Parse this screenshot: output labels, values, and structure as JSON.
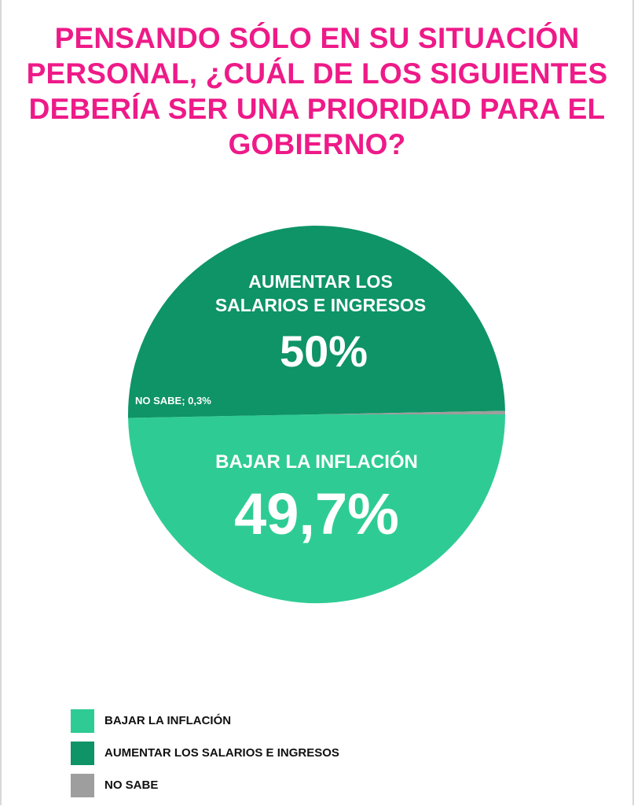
{
  "chart_data": {
    "type": "pie",
    "title": "PENSANDO SÓLO EN SU SITUACIÓN PERSONAL, ¿CUÁL DE LOS SIGUIENTES DEBERÍA SER UNA PRIORIDAD PARA EL GOBIERNO?",
    "slices": [
      {
        "name": "BAJAR LA INFLACIÓN",
        "value": 49.7,
        "color": "#2ecc94",
        "label_name": "BAJAR LA INFLACIÓN",
        "label_value": "49,7%"
      },
      {
        "name": "AUMENTAR LOS SALARIOS E INGRESOS",
        "value": 50,
        "color": "#0e9466",
        "label_name_lines": [
          "AUMENTAR LOS",
          "SALARIOS E INGRESOS"
        ],
        "label_value": "50%"
      },
      {
        "name": "NO SABE",
        "value": 0.3,
        "color": "#9e9e9e",
        "label_inline": "NO SABE; 0,3%"
      }
    ],
    "legend": {
      "position": "bottom-left",
      "items": [
        {
          "label": "BAJAR LA INFLACIÓN",
          "color": "#2ecc94"
        },
        {
          "label": "AUMENTAR LOS SALARIOS E INGRESOS",
          "color": "#0e9466"
        },
        {
          "label": "NO SABE",
          "color": "#9e9e9e"
        }
      ]
    }
  },
  "colors": {
    "title": "#ee1a88",
    "label_text": "#ffffff"
  }
}
